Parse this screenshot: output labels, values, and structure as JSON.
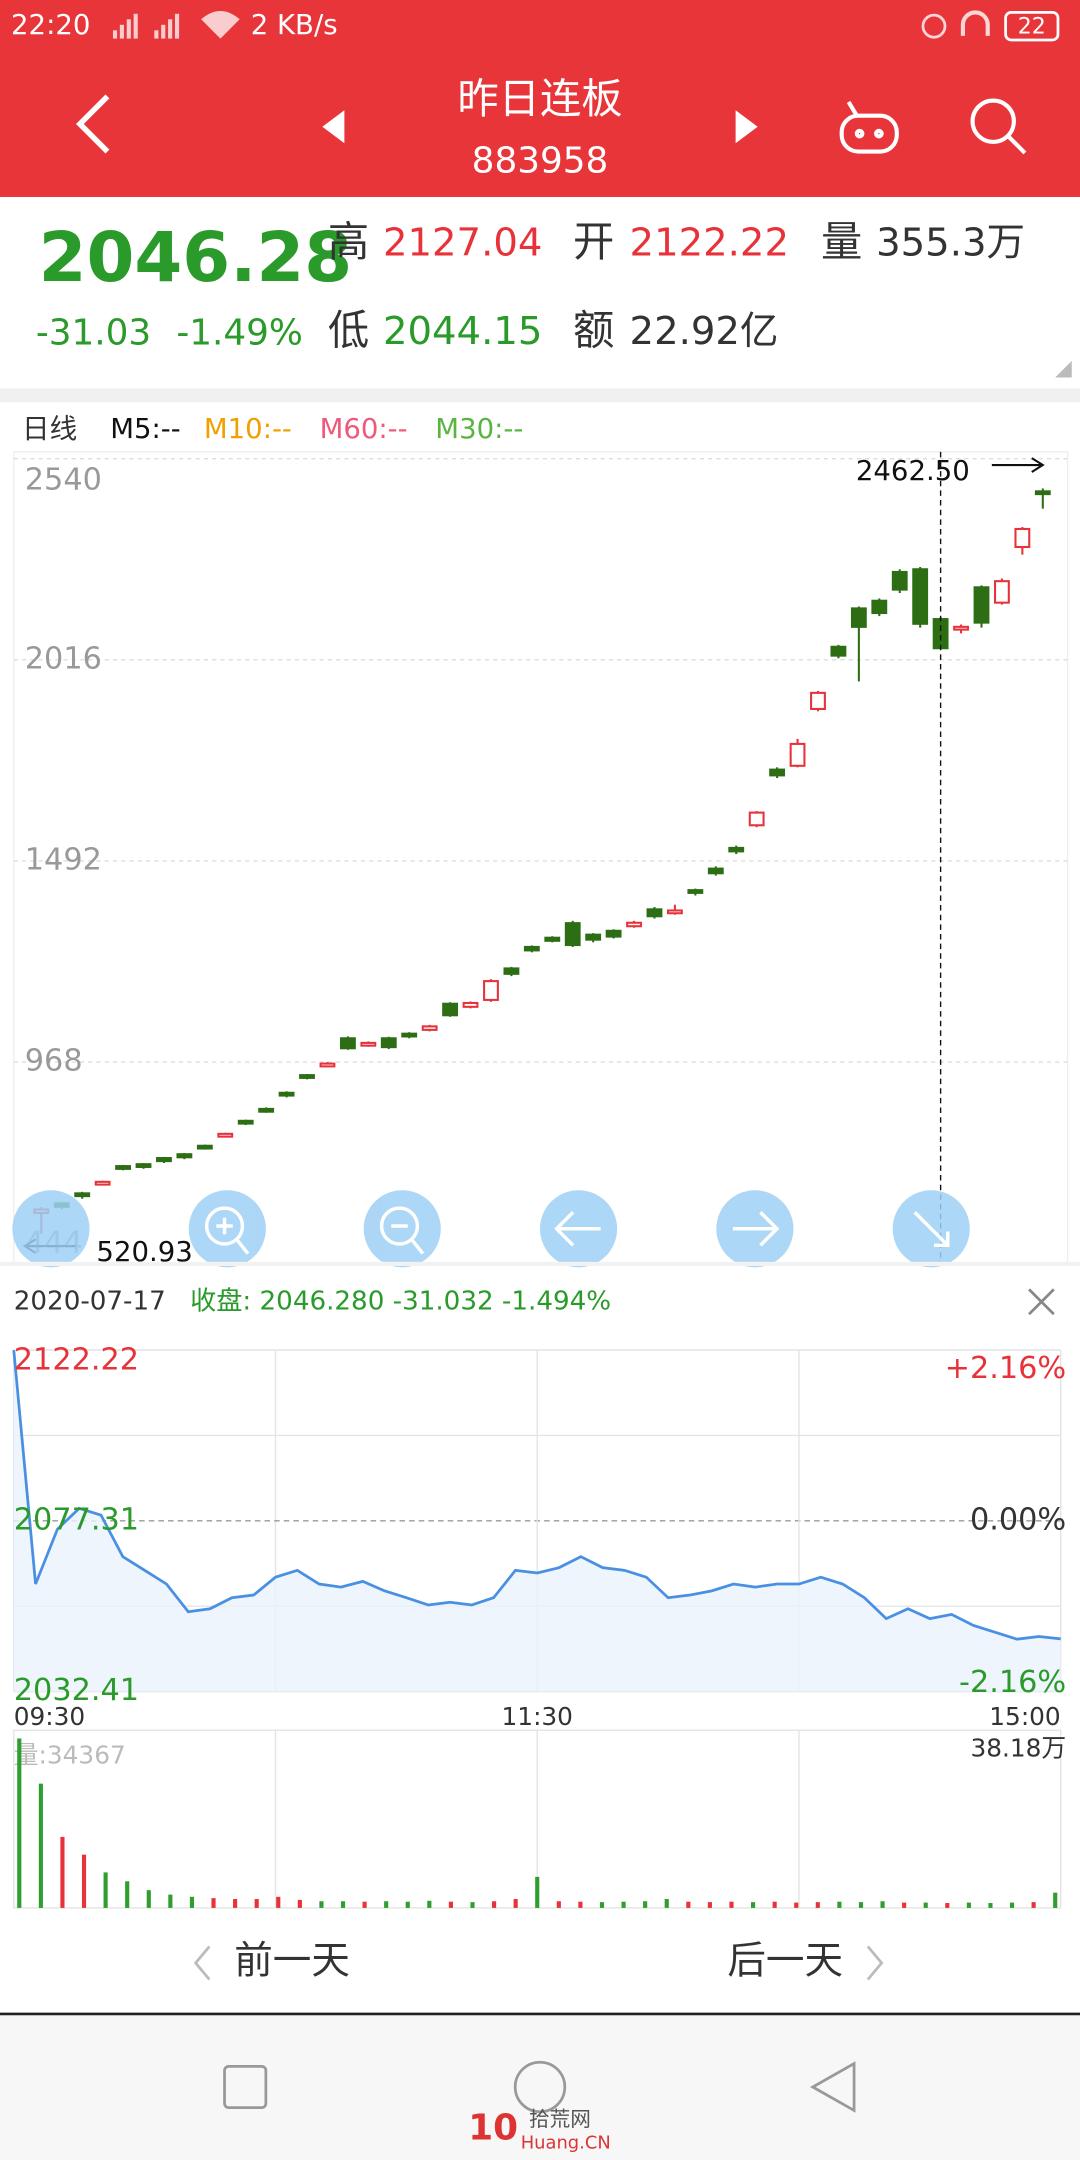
{
  "status": {
    "time": "22:20",
    "speed": "2 KB/s",
    "battery": "22"
  },
  "header": {
    "title": "昨日连板",
    "code": "883958"
  },
  "quote": {
    "price": "2046.28",
    "change": "-31.03",
    "change_pct": "-1.49%",
    "high_label": "高",
    "high": "2127.04",
    "open_label": "开",
    "open": "2122.22",
    "volume_label": "量",
    "volume": "355.3万",
    "low_label": "低",
    "low": "2044.15",
    "amount_label": "额",
    "amount": "22.92亿"
  },
  "legend": [
    "日线",
    "M5:--",
    "M10:--",
    "M60:--",
    "M30:--"
  ],
  "info": {
    "date": "2020-07-17",
    "close_text": "收盘: 2046.280 -31.032 -1.494%"
  },
  "nav": {
    "prev": "前一天",
    "next": "后一天"
  },
  "watermark": {
    "logo": "10",
    "name": "拾荒网",
    "site": "Huang.CN"
  },
  "chart_data": [
    {
      "type": "candlestick",
      "up_color": "#e8323a",
      "down_color": "#2d6e14",
      "ylim": [
        444,
        2540
      ],
      "yticks": [
        2540,
        2016,
        1492,
        968,
        444
      ],
      "grid": true,
      "selected": 44,
      "open": [
        575,
        600,
        626,
        650,
        697,
        702,
        718,
        728,
        750,
        776,
        815,
        846,
        888,
        934,
        958,
        1030,
        1012,
        1030,
        1042,
        1052,
        1120,
        1112,
        1130,
        1212,
        1268,
        1292,
        1330,
        1300,
        1310,
        1322,
        1366,
        1356,
        1416,
        1472,
        1526,
        1585,
        1730,
        1740,
        1888,
        2050,
        2150,
        2170,
        2245,
        2252,
        2122.22,
        2095,
        2205,
        2165,
        2310,
        2455
      ],
      "close": [
        584,
        591,
        620,
        656,
        692,
        695,
        710,
        720,
        746,
        781,
        810,
        842,
        882,
        929,
        964,
        1004,
        1018,
        1007,
        1036,
        1061,
        1090,
        1122,
        1179,
        1198,
        1259,
        1284,
        1273,
        1287,
        1295,
        1331,
        1348,
        1363,
        1409,
        1460,
        1517,
        1618,
        1715,
        1797,
        1930,
        2027,
        2102,
        2138,
        2199,
        2110,
        2046.28,
        2102,
        2113,
        2221,
        2357,
        2450
      ],
      "high": [
        590,
        603,
        630,
        659,
        700,
        705,
        721,
        731,
        753,
        784,
        818,
        850,
        892,
        937,
        968,
        1035,
        1022,
        1034,
        1046,
        1065,
        1124,
        1126,
        1184,
        1216,
        1272,
        1296,
        1336,
        1304,
        1314,
        1336,
        1372,
        1378,
        1420,
        1478,
        1532,
        1622,
        1736,
        1810,
        1935,
        2055,
        2155,
        2176,
        2252,
        2258,
        2127.04,
        2108,
        2210,
        2228,
        2362,
        2462.5
      ],
      "low": [
        520.93,
        585,
        612,
        647,
        686,
        690,
        705,
        715,
        740,
        773,
        804,
        836,
        876,
        923,
        955,
        1000,
        1008,
        1002,
        1030,
        1048,
        1086,
        1108,
        1125,
        1192,
        1254,
        1280,
        1268,
        1280,
        1290,
        1318,
        1342,
        1352,
        1402,
        1454,
        1510,
        1580,
        1708,
        1736,
        1882,
        2020,
        1960,
        2130,
        2190,
        2100,
        2044.15,
        2085,
        2100,
        2160,
        2290,
        2410
      ],
      "annotations": [
        {
          "value": 2462.5,
          "label": "2462.50"
        },
        {
          "value": 520.93,
          "label": "520.93"
        }
      ]
    },
    {
      "type": "line",
      "color": "#4a90e2",
      "xlim": [
        0,
        240
      ],
      "xticks": [
        {
          "value": 0,
          "label": "09:30"
        },
        {
          "value": 120,
          "label": "11:30"
        },
        {
          "value": 240,
          "label": "15:00"
        }
      ],
      "ylim": [
        2032.41,
        2122.22
      ],
      "yticks": [
        2122.22,
        2077.31,
        2032.41
      ],
      "y2lim": [
        -2.16,
        2.16
      ],
      "y2ticks": [
        {
          "value": 2.16,
          "label": "+2.16%"
        },
        {
          "value": 0,
          "label": "0.00%"
        },
        {
          "value": -2.16,
          "label": "-2.16%"
        }
      ],
      "x": [
        0,
        5,
        10,
        15,
        20,
        25,
        30,
        35,
        40,
        45,
        50,
        55,
        60,
        65,
        70,
        75,
        80,
        85,
        90,
        95,
        100,
        105,
        110,
        115,
        120,
        125,
        130,
        135,
        140,
        145,
        150,
        155,
        160,
        165,
        170,
        175,
        180,
        185,
        190,
        195,
        200,
        205,
        210,
        215,
        220,
        225,
        230,
        235,
        240
      ],
      "values": [
        2122.2,
        2060.7,
        2075.1,
        2080.6,
        2078.8,
        2067.9,
        2064.3,
        2060.7,
        2053.4,
        2054.2,
        2057.1,
        2057.8,
        2062.5,
        2064.3,
        2060.7,
        2059.9,
        2061.4,
        2058.9,
        2057.1,
        2055.2,
        2055.9,
        2055.2,
        2057.1,
        2064.3,
        2063.6,
        2065.0,
        2067.9,
        2065.0,
        2064.3,
        2062.5,
        2057.1,
        2057.8,
        2058.9,
        2060.7,
        2059.9,
        2060.7,
        2060.7,
        2062.5,
        2060.7,
        2057.1,
        2051.6,
        2054.2,
        2051.6,
        2052.7,
        2049.8,
        2048.0,
        2046.2,
        2046.9,
        2046.28
      ]
    },
    {
      "type": "bar",
      "title": "量:34367",
      "up_color": "#e8323a",
      "down_color": "#2e9e2e",
      "ylim": [
        0,
        381800
      ],
      "yticks": [
        {
          "value": 381800,
          "label": "38.18万"
        }
      ],
      "values": [
        381800,
        280000,
        160000,
        120000,
        80000,
        60000,
        40000,
        30000,
        25000,
        22000,
        20000,
        20000,
        25000,
        18000,
        15000,
        15000,
        14000,
        15000,
        14000,
        16000,
        14000,
        13000,
        15000,
        20000,
        70000,
        15000,
        14000,
        13000,
        14000,
        15000,
        20000,
        14000,
        13000,
        14000,
        13000,
        14000,
        12000,
        13000,
        14000,
        13000,
        15000,
        12000,
        12000,
        11000,
        12000,
        11000,
        12000,
        13000,
        34367
      ]
    }
  ]
}
